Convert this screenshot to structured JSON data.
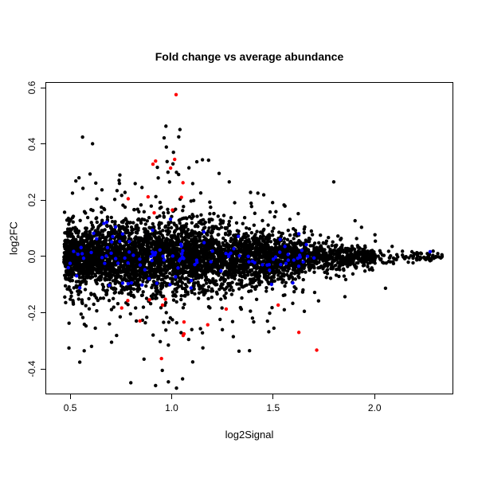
{
  "chart_data": {
    "type": "scatter",
    "title": "Fold change vs average abundance",
    "xlabel": "log2Signal",
    "ylabel": "log2FC",
    "xlim": [
      0.378,
      2.388
    ],
    "ylim": [
      -0.49,
      0.62
    ],
    "grid": false,
    "legend": "none",
    "background": "#ffffff",
    "marker_radius": 2.2,
    "x_ticks": [
      {
        "value": 0.5,
        "label": "0.5"
      },
      {
        "value": 1.0,
        "label": "1.0"
      },
      {
        "value": 1.5,
        "label": "1.5"
      },
      {
        "value": 2.0,
        "label": "2.0"
      }
    ],
    "y_ticks": [
      {
        "value": -0.4,
        "label": "-0.4"
      },
      {
        "value": -0.2,
        "label": "-0.2"
      },
      {
        "value": 0.0,
        "label": "0.0"
      },
      {
        "value": 0.2,
        "label": "0.2"
      },
      {
        "value": 0.4,
        "label": "0.4"
      },
      {
        "value": 0.6,
        "label": "0.6"
      }
    ],
    "series": [
      {
        "name": "genes-black-cloud",
        "color": "#000000",
        "type": "generated",
        "n": 4700,
        "seed": 42,
        "x_mixture": [
          {
            "w": 0.61,
            "min": 0.465,
            "max": 1.2
          },
          {
            "w": 0.27,
            "min": 1.2,
            "max": 1.65
          },
          {
            "w": 0.107,
            "min": 1.65,
            "max": 2.0
          },
          {
            "w": 0.013,
            "min": 2.0,
            "max": 2.33
          }
        ],
        "sigma": {
          "peak": 0.06,
          "center": 0.95,
          "left_width": 0.9,
          "right_width": 0.62
        },
        "tail_mix": [
          {
            "w": 0.85,
            "k": 1.0
          },
          {
            "w": 0.13,
            "k": 2.1
          },
          {
            "w": 0.02,
            "k": 3.5
          }
        ],
        "y_clamp": [
          -0.465,
          0.47
        ],
        "outlier_points": [
          [
            0.968,
            0.466
          ],
          [
            1.037,
            0.454
          ],
          [
            1.031,
            0.428
          ],
          [
            0.97,
            0.392
          ],
          [
            1.005,
            0.373
          ],
          [
            1.178,
            0.345
          ],
          [
            1.02,
            0.302
          ],
          [
            0.93,
            0.282
          ],
          [
            1.23,
            0.298
          ],
          [
            1.1,
            0.262
          ],
          [
            1.28,
            0.268
          ],
          [
            1.795,
            0.268
          ],
          [
            0.85,
            0.248
          ],
          [
            1.45,
            0.222
          ],
          [
            0.75,
            0.22
          ],
          [
            1.55,
            0.186
          ],
          [
            0.65,
            0.178
          ],
          [
            1.62,
            0.155
          ],
          [
            1.9,
            0.13
          ],
          [
            0.795,
            -0.446
          ],
          [
            0.917,
            -0.456
          ],
          [
            1.02,
            -0.465
          ],
          [
            0.95,
            -0.402
          ],
          [
            1.05,
            -0.432
          ],
          [
            0.86,
            -0.362
          ],
          [
            1.1,
            -0.372
          ],
          [
            1.38,
            -0.332
          ],
          [
            1.15,
            -0.322
          ],
          [
            0.98,
            -0.312
          ],
          [
            1.08,
            -0.292
          ],
          [
            1.3,
            -0.282
          ],
          [
            0.7,
            -0.302
          ],
          [
            1.5,
            -0.252
          ],
          [
            0.62,
            -0.252
          ],
          [
            0.55,
            -0.202
          ],
          [
            1.65,
            -0.192
          ],
          [
            1.72,
            -0.155
          ],
          [
            1.85,
            -0.14
          ],
          [
            2.05,
            -0.11
          ]
        ]
      },
      {
        "name": "control-probes-blue",
        "color": "#0000ff",
        "type": "generated",
        "n": 110,
        "seed": 7,
        "x_mixture": [
          {
            "w": 0.7,
            "min": 0.48,
            "max": 1.25
          },
          {
            "w": 0.3,
            "min": 1.25,
            "max": 1.7
          }
        ],
        "sigma": {
          "peak": 0.055,
          "center": 0.95,
          "left_width": 0.9,
          "right_width": 0.62
        },
        "tail_mix": [
          {
            "w": 0.9,
            "k": 0.9
          },
          {
            "w": 0.1,
            "k": 1.6
          }
        ],
        "y_clamp": [
          -0.155,
          0.155
        ],
        "outlier_points": [
          [
            2.27,
            0.02
          ],
          [
            1.66,
            0.045
          ]
        ]
      },
      {
        "name": "significant-red",
        "color": "#ff0000",
        "type": "points",
        "points": [
          [
            1.018,
            0.578
          ],
          [
            0.904,
            0.331
          ],
          [
            0.917,
            0.342
          ],
          [
            1.011,
            0.348
          ],
          [
            0.991,
            0.317
          ],
          [
            1.052,
            0.265
          ],
          [
            0.88,
            0.215
          ],
          [
            0.782,
            0.208
          ],
          [
            1.044,
            0.213
          ],
          [
            0.91,
            0.158
          ],
          [
            1.0,
            0.168
          ],
          [
            0.965,
            -0.149
          ],
          [
            0.78,
            -0.154
          ],
          [
            0.75,
            -0.18
          ],
          [
            0.84,
            -0.226
          ],
          [
            0.887,
            -0.151
          ],
          [
            0.951,
            -0.17
          ],
          [
            1.057,
            -0.23
          ],
          [
            1.057,
            -0.272
          ],
          [
            1.174,
            -0.24
          ],
          [
            1.265,
            -0.184
          ],
          [
            0.946,
            -0.36
          ],
          [
            1.053,
            -0.278
          ],
          [
            1.521,
            -0.17
          ],
          [
            1.623,
            -0.267
          ],
          [
            1.711,
            -0.33
          ]
        ]
      }
    ]
  }
}
